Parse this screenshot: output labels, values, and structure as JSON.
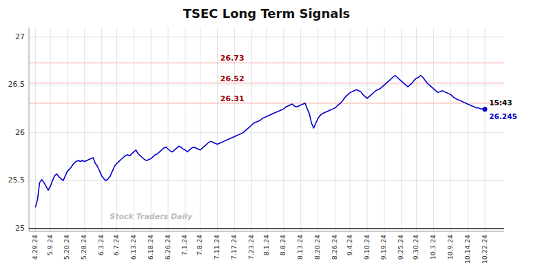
{
  "chart_data": {
    "type": "line",
    "title": "TSEC Long Term Signals",
    "categories": [
      "4.29.24",
      null,
      null,
      null,
      null,
      null,
      null,
      "5.9.24",
      null,
      null,
      null,
      null,
      null,
      null,
      null,
      "5.20.24",
      null,
      null,
      null,
      null,
      null,
      null,
      null,
      "5.28.24",
      null,
      null,
      null,
      null,
      null,
      null,
      null,
      "6.3.24",
      null,
      null,
      null,
      null,
      null,
      null,
      "6.7.24",
      null,
      null,
      null,
      null,
      null,
      null,
      null,
      "6.13.24",
      null,
      null,
      null,
      null,
      null,
      null,
      null,
      "6.18.24",
      null,
      null,
      null,
      null,
      null,
      null,
      null,
      "6.26.24",
      null,
      null,
      null,
      null,
      null,
      null,
      null,
      "7.1.24",
      null,
      null,
      null,
      null,
      null,
      null,
      "7.8.24",
      null,
      null,
      null,
      null,
      null,
      null,
      null,
      "7.11.24",
      null,
      null,
      null,
      null,
      null,
      null,
      null,
      "7.17.24",
      null,
      null,
      null,
      null,
      null,
      null,
      null,
      "7.23.24",
      null,
      null,
      null,
      null,
      null,
      null,
      "8.1.24",
      null,
      null,
      null,
      null,
      null,
      null,
      null,
      "8.8.24",
      null,
      null,
      null,
      null,
      null,
      null,
      null,
      "8.13.24",
      null,
      null,
      null,
      null,
      null,
      null,
      null,
      "8.20.24",
      null,
      null,
      null,
      null,
      null,
      null,
      null,
      "8.26.24",
      null,
      null,
      null,
      null,
      null,
      null,
      "9.4.24",
      null,
      null,
      null,
      null,
      null,
      null,
      null,
      "9.10.24",
      null,
      null,
      null,
      null,
      null,
      null,
      null,
      "9.19.24",
      null,
      null,
      null,
      null,
      null,
      null,
      null,
      "9.25.24",
      null,
      null,
      null,
      null,
      null,
      null,
      "9.30.24",
      null,
      null,
      null,
      null,
      null,
      null,
      null,
      "10.3.24",
      null,
      null,
      null,
      null,
      null,
      null,
      null,
      "10.9.24",
      null,
      null,
      null,
      null,
      null,
      null,
      null,
      "10.14.24",
      null,
      null,
      null,
      null,
      null,
      null,
      null,
      "10.22.24"
    ],
    "values": [
      25.22,
      25.3,
      25.48,
      25.51,
      25.48,
      25.44,
      25.4,
      25.44,
      25.5,
      25.55,
      25.57,
      25.54,
      25.52,
      25.5,
      25.55,
      25.6,
      25.62,
      25.65,
      25.68,
      25.7,
      25.71,
      25.7,
      25.71,
      25.7,
      25.71,
      25.72,
      25.73,
      25.74,
      25.68,
      25.65,
      25.6,
      25.55,
      25.52,
      25.5,
      25.52,
      25.55,
      25.6,
      25.65,
      25.68,
      25.7,
      25.72,
      25.74,
      25.76,
      25.77,
      25.76,
      25.78,
      25.8,
      25.82,
      25.78,
      25.76,
      25.74,
      25.72,
      25.71,
      25.72,
      25.73,
      25.75,
      25.77,
      25.78,
      25.8,
      25.82,
      25.84,
      25.85,
      25.83,
      25.81,
      25.8,
      25.82,
      25.84,
      25.86,
      25.85,
      25.83,
      25.82,
      25.8,
      25.82,
      25.84,
      25.85,
      25.84,
      25.83,
      25.82,
      25.84,
      25.86,
      25.88,
      25.9,
      25.91,
      25.9,
      25.89,
      25.88,
      25.89,
      25.9,
      25.91,
      25.92,
      25.93,
      25.94,
      25.95,
      25.96,
      25.97,
      25.98,
      25.99,
      26.0,
      26.02,
      26.04,
      26.06,
      26.08,
      26.1,
      26.11,
      26.12,
      26.13,
      26.15,
      26.16,
      26.17,
      26.18,
      26.19,
      26.2,
      26.21,
      26.22,
      26.23,
      26.24,
      26.25,
      26.27,
      26.28,
      26.29,
      26.3,
      26.28,
      26.27,
      26.28,
      26.29,
      26.3,
      26.31,
      26.25,
      26.2,
      26.1,
      26.05,
      26.1,
      26.15,
      26.18,
      26.2,
      26.21,
      26.22,
      26.23,
      26.24,
      26.25,
      26.26,
      26.28,
      26.3,
      26.32,
      26.35,
      26.38,
      26.4,
      26.42,
      26.43,
      26.44,
      26.45,
      26.44,
      26.43,
      26.4,
      26.38,
      26.36,
      26.38,
      26.4,
      26.42,
      26.44,
      26.45,
      26.46,
      26.48,
      26.5,
      26.52,
      26.54,
      26.56,
      26.58,
      26.6,
      26.58,
      26.56,
      26.54,
      26.52,
      26.5,
      26.48,
      26.5,
      26.52,
      26.55,
      26.57,
      26.58,
      26.6,
      26.58,
      26.55,
      26.52,
      26.5,
      26.48,
      26.46,
      26.44,
      26.42,
      26.43,
      26.44,
      26.43,
      26.42,
      26.41,
      26.4,
      26.38,
      26.36,
      26.35,
      26.34,
      26.33,
      26.32,
      26.31,
      26.3,
      26.29,
      26.28,
      26.27,
      26.26,
      26.26,
      26.25,
      26.25,
      26.245
    ],
    "color": "#0000cc",
    "marker": "circle",
    "ylim": [
      24.97,
      27.1
    ],
    "yticks": [
      25,
      25.5,
      26,
      26.5,
      27
    ],
    "grid": true,
    "grid_color": "#cccccc",
    "background_color": "#ffffff",
    "reference_lines": [
      {
        "value": 26.73,
        "label": "26.73"
      },
      {
        "value": 26.52,
        "label": "26.52"
      },
      {
        "value": 26.31,
        "label": "26.31"
      }
    ],
    "reference_line_color": "#ffb3b3",
    "reference_label_color": "#990000",
    "annotations": [
      {
        "text": "15:43",
        "color": "#000000"
      },
      {
        "value": 26.245,
        "label": "26.245",
        "color": "#0000cc"
      }
    ],
    "watermark": "Stock Traders Daily"
  }
}
